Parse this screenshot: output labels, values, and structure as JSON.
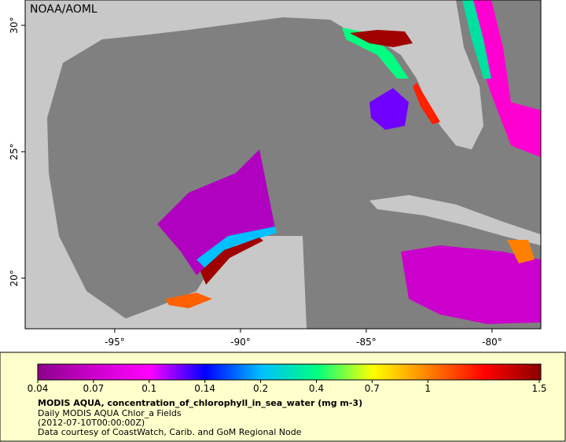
{
  "map": {
    "credit": "NOAA/AOML",
    "lon_range": [
      -98.56,
      -78.06
    ],
    "lat_range": [
      18.0,
      31.0
    ],
    "lon_ticks": [
      {
        "value": -95,
        "label": "-95°"
      },
      {
        "value": -90,
        "label": "-90°"
      },
      {
        "value": -85,
        "label": "-85°"
      },
      {
        "value": -80,
        "label": "-80°"
      }
    ],
    "lat_ticks": [
      {
        "value": 30,
        "label": "30°"
      },
      {
        "value": 25,
        "label": "25°"
      },
      {
        "value": 20,
        "label": "20°"
      }
    ]
  },
  "colorbar": {
    "ticks": [
      0.04,
      0.07,
      0.1,
      0.14,
      0.2,
      0.4,
      0.7,
      1,
      1.5
    ],
    "colors": [
      "#8b008b",
      "#cc00cc",
      "#ff00ff",
      "#0000ff",
      "#00bfff",
      "#00ff80",
      "#ffff00",
      "#ff8000",
      "#ff0000",
      "#8b0000"
    ]
  },
  "caption": {
    "title": "MODIS AQUA, concentration_of_chlorophyll_in_sea_water (mg m-3)",
    "lines": [
      "Daily MODIS AQUA Chlor_a Fields",
      "(2012-07-10T00:00:00Z)",
      "Data courtesy of CoastWatch, Carib. and GoM Regional Node"
    ]
  }
}
